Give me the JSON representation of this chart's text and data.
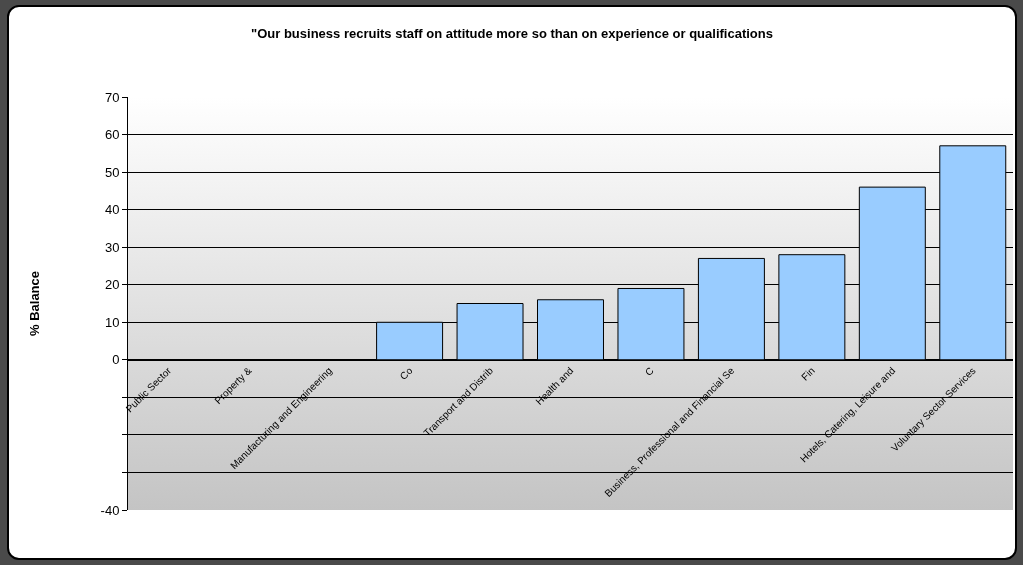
{
  "chart_data": {
    "type": "bar",
    "title": "\"Our business recruits staff on attitude more so than on experience or qualifications",
    "ylabel": "% Balance",
    "categories": [
      "Public Sector",
      "Property &",
      "Manufacturing and Engineering",
      "Co",
      "Transport and Distrib",
      "Health and",
      "C",
      "Business, Professional and Financial Se",
      "Fin",
      "Hotels, Catering, Leisure and",
      "Voluntary Sector Services"
    ],
    "values": [
      null,
      null,
      null,
      10,
      15,
      16,
      19,
      27,
      28,
      46,
      57
    ],
    "color": "#99ccff",
    "ylim": [
      -40,
      70
    ],
    "yticks": [
      -40,
      {
        "value": -30,
        "label": null
      },
      {
        "value": -20,
        "label": null
      },
      {
        "value": -10,
        "label": null
      },
      0,
      10,
      20,
      30,
      40,
      50,
      60,
      70
    ],
    "grid": "y"
  }
}
